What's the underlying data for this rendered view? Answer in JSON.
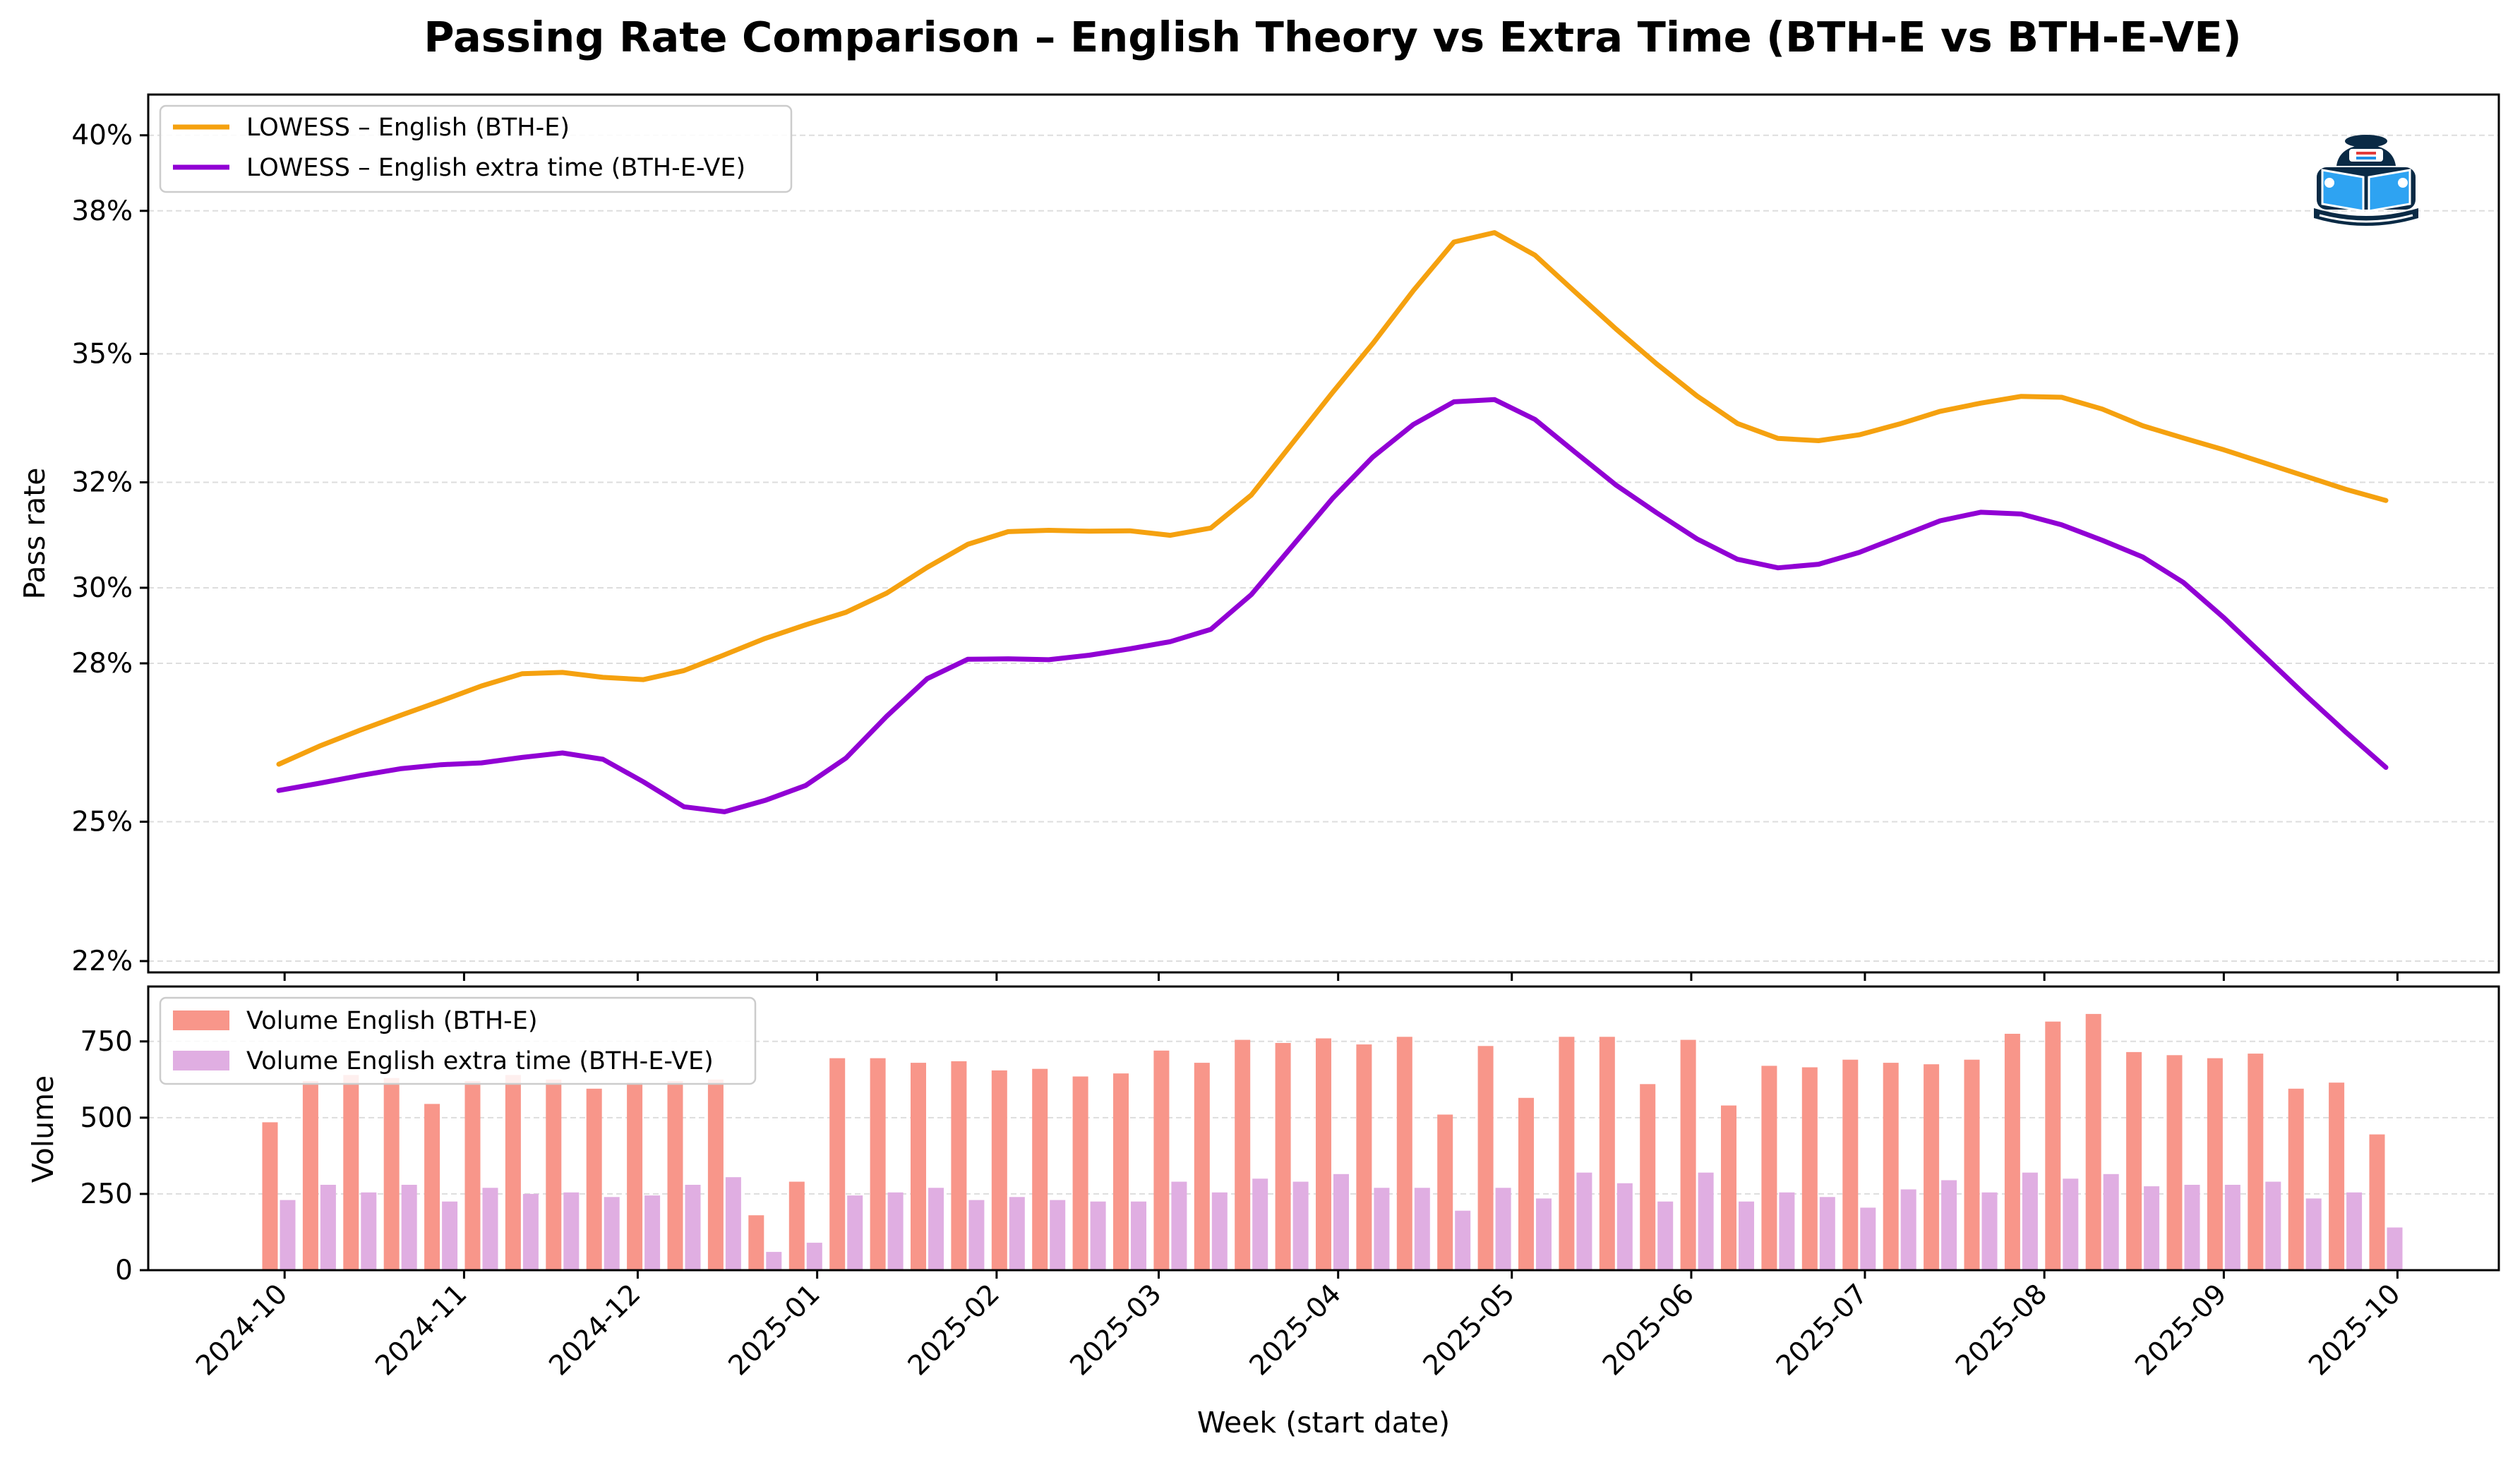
{
  "title": "Passing Rate Comparison – English Theory vs Extra Time (BTH-E vs BTH-E-VE)",
  "logo_icon": "driving-school-book-icon",
  "colors": {
    "english": "#f5a10f",
    "extra": "#9100d4",
    "bar_english": "#f8968a",
    "bar_extra": "#e0aee2"
  },
  "chart_data": [
    {
      "type": "line",
      "ylabel": "Pass rate",
      "yticks": [
        "22%",
        "25%",
        "28%",
        "30%",
        "32%",
        "35%",
        "38%",
        "40%"
      ],
      "ylim": [
        0.215,
        0.409
      ],
      "grid": true,
      "legend_position": "upper-left",
      "x": [
        "2024-09-30",
        "2024-10-07",
        "2024-10-14",
        "2024-10-21",
        "2024-10-28",
        "2024-11-04",
        "2024-11-11",
        "2024-11-18",
        "2024-11-25",
        "2024-12-02",
        "2024-12-09",
        "2024-12-16",
        "2024-12-23",
        "2024-12-30",
        "2025-01-06",
        "2025-01-13",
        "2025-01-20",
        "2025-01-27",
        "2025-02-03",
        "2025-02-10",
        "2025-02-17",
        "2025-02-24",
        "2025-03-03",
        "2025-03-10",
        "2025-03-17",
        "2025-03-24",
        "2025-03-31",
        "2025-04-07",
        "2025-04-14",
        "2025-04-21",
        "2025-04-28",
        "2025-05-05",
        "2025-05-12",
        "2025-05-19",
        "2025-05-26",
        "2025-06-02",
        "2025-06-09",
        "2025-06-16",
        "2025-06-23",
        "2025-06-30",
        "2025-07-07",
        "2025-07-14",
        "2025-07-21",
        "2025-07-28",
        "2025-08-04",
        "2025-08-11",
        "2025-08-18",
        "2025-08-25",
        "2025-09-01",
        "2025-09-08",
        "2025-09-15",
        "2025-09-22",
        "2025-09-29"
      ],
      "series": [
        {
          "name": "LOWESS – English (BTH-E)",
          "values": [
            0.261,
            0.265,
            0.2685,
            0.2718,
            0.275,
            0.2783,
            0.281,
            0.2813,
            0.2802,
            0.2797,
            0.2817,
            0.2852,
            0.2888,
            0.2918,
            0.2946,
            0.2988,
            0.3045,
            0.3096,
            0.3124,
            0.3127,
            0.3125,
            0.3126,
            0.3116,
            0.3132,
            0.3205,
            0.3318,
            0.3431,
            0.354,
            0.3657,
            0.3764,
            0.3785,
            0.3735,
            0.3653,
            0.3572,
            0.3495,
            0.3424,
            0.3363,
            0.333,
            0.3325,
            0.3338,
            0.3362,
            0.339,
            0.3408,
            0.3423,
            0.3421,
            0.3395,
            0.3358,
            0.3331,
            0.3305,
            0.3276,
            0.3247,
            0.3218,
            0.3193
          ]
        },
        {
          "name": "LOWESS – English extra time (BTH-E-VE)",
          "values": [
            0.2552,
            0.2568,
            0.2585,
            0.26,
            0.2609,
            0.2613,
            0.2625,
            0.2635,
            0.2621,
            0.2571,
            0.2516,
            0.2505,
            0.253,
            0.2563,
            0.2624,
            0.2716,
            0.2799,
            0.2842,
            0.2843,
            0.2841,
            0.2851,
            0.2865,
            0.2881,
            0.2908,
            0.2985,
            0.3091,
            0.3197,
            0.3289,
            0.3361,
            0.3411,
            0.3416,
            0.3372,
            0.3299,
            0.3227,
            0.3166,
            0.3108,
            0.3063,
            0.3044,
            0.3052,
            0.3078,
            0.3113,
            0.3148,
            0.3167,
            0.3163,
            0.3139,
            0.3105,
            0.3068,
            0.3012,
            0.2934,
            0.2849,
            0.2764,
            0.2682,
            0.2603
          ]
        }
      ]
    },
    {
      "type": "bar",
      "ylabel": "Volume",
      "xlabel": "Week (start date)",
      "yticks": [
        "0",
        "250",
        "500",
        "750"
      ],
      "ylim": [
        0,
        930
      ],
      "grid": true,
      "legend_position": "upper-left",
      "xticks": [
        "2024-10",
        "2024-11",
        "2024-12",
        "2025-01",
        "2025-02",
        "2025-03",
        "2025-04",
        "2025-05",
        "2025-06",
        "2025-07",
        "2025-08",
        "2025-09",
        "2025-10"
      ],
      "x": [
        "2024-09-30",
        "2024-10-07",
        "2024-10-14",
        "2024-10-21",
        "2024-10-28",
        "2024-11-04",
        "2024-11-11",
        "2024-11-18",
        "2024-11-25",
        "2024-12-02",
        "2024-12-09",
        "2024-12-16",
        "2024-12-23",
        "2024-12-30",
        "2025-01-06",
        "2025-01-13",
        "2025-01-20",
        "2025-01-27",
        "2025-02-03",
        "2025-02-10",
        "2025-02-17",
        "2025-02-24",
        "2025-03-03",
        "2025-03-10",
        "2025-03-17",
        "2025-03-24",
        "2025-03-31",
        "2025-04-07",
        "2025-04-14",
        "2025-04-21",
        "2025-04-28",
        "2025-05-05",
        "2025-05-12",
        "2025-05-19",
        "2025-05-26",
        "2025-06-02",
        "2025-06-09",
        "2025-06-16",
        "2025-06-23",
        "2025-06-30",
        "2025-07-07",
        "2025-07-14",
        "2025-07-21",
        "2025-07-28",
        "2025-08-04",
        "2025-08-11",
        "2025-08-18",
        "2025-08-25",
        "2025-09-01",
        "2025-09-08",
        "2025-09-15",
        "2025-09-22",
        "2025-09-29"
      ],
      "series": [
        {
          "name": "Volume English (BTH-E)",
          "values": [
            485,
            620,
            640,
            630,
            545,
            620,
            640,
            625,
            595,
            615,
            620,
            625,
            180,
            290,
            695,
            695,
            680,
            685,
            655,
            660,
            635,
            645,
            720,
            680,
            755,
            745,
            760,
            740,
            765,
            510,
            735,
            565,
            765,
            765,
            610,
            755,
            540,
            670,
            665,
            690,
            680,
            675,
            690,
            775,
            815,
            840,
            715,
            705,
            695,
            710,
            595,
            615,
            445
          ]
        },
        {
          "name": "Volume English extra time (BTH-E-VE)",
          "values": [
            230,
            280,
            255,
            280,
            225,
            270,
            250,
            255,
            240,
            245,
            280,
            305,
            60,
            90,
            245,
            255,
            270,
            230,
            240,
            230,
            225,
            225,
            290,
            255,
            300,
            290,
            315,
            270,
            270,
            195,
            270,
            235,
            320,
            285,
            225,
            320,
            225,
            255,
            240,
            205,
            265,
            295,
            255,
            320,
            300,
            315,
            275,
            280,
            280,
            290,
            235,
            255,
            140
          ]
        }
      ]
    }
  ]
}
